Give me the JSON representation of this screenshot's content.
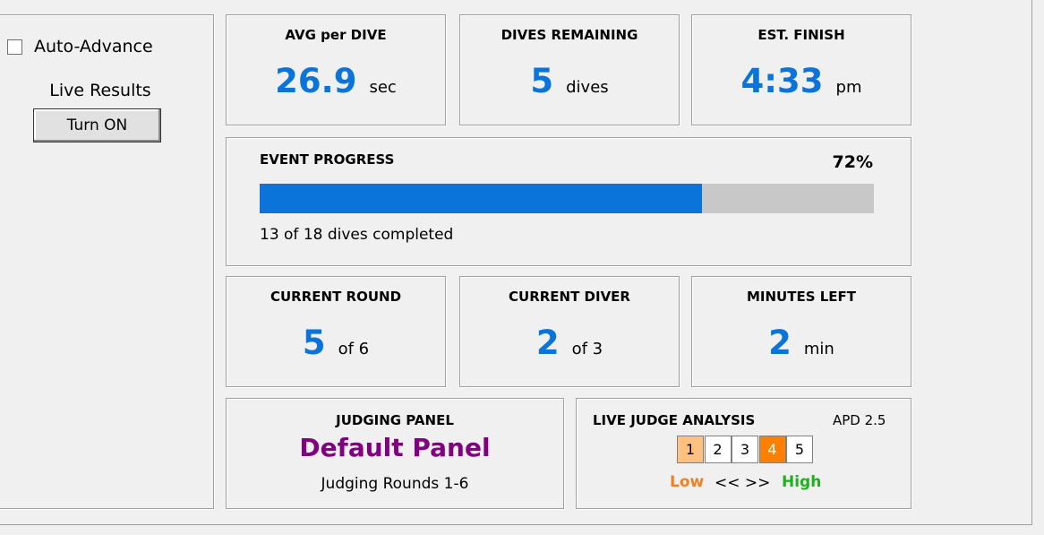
{
  "sidebar": {
    "auto_advance": "Auto-Advance",
    "live_results": "Live Results",
    "button": "Turn ON"
  },
  "stats": [
    {
      "title": "AVG per DIVE",
      "value": "26.9",
      "unit": "sec"
    },
    {
      "title": "DIVES REMAINING",
      "value": "5",
      "unit": "dives"
    },
    {
      "title": "EST. FINISH",
      "value": "4:33",
      "unit": "pm"
    }
  ],
  "progress": {
    "title": "EVENT PROGRESS",
    "value": 72,
    "value_label": "72%",
    "caption": "13 of 18 dives completed"
  },
  "round_stats": [
    {
      "title": "CURRENT ROUND",
      "value": "5",
      "unit": "of 6"
    },
    {
      "title": "CURRENT DIVER",
      "value": "2",
      "unit": "of 3"
    },
    {
      "title": "MINUTES LEFT",
      "value": "2",
      "unit": "min"
    }
  ],
  "judging": {
    "title": "JUDGING PANEL",
    "panel": "Default Panel",
    "rounds": "Judging Rounds 1-6"
  },
  "analysis": {
    "title": "LIVE JUDGE ANALYSIS",
    "apd": "APD 2.5",
    "scale": [
      "1",
      "2",
      "3",
      "4",
      "5"
    ],
    "low": "Low",
    "arrows": "<< >>",
    "high": "High"
  }
}
